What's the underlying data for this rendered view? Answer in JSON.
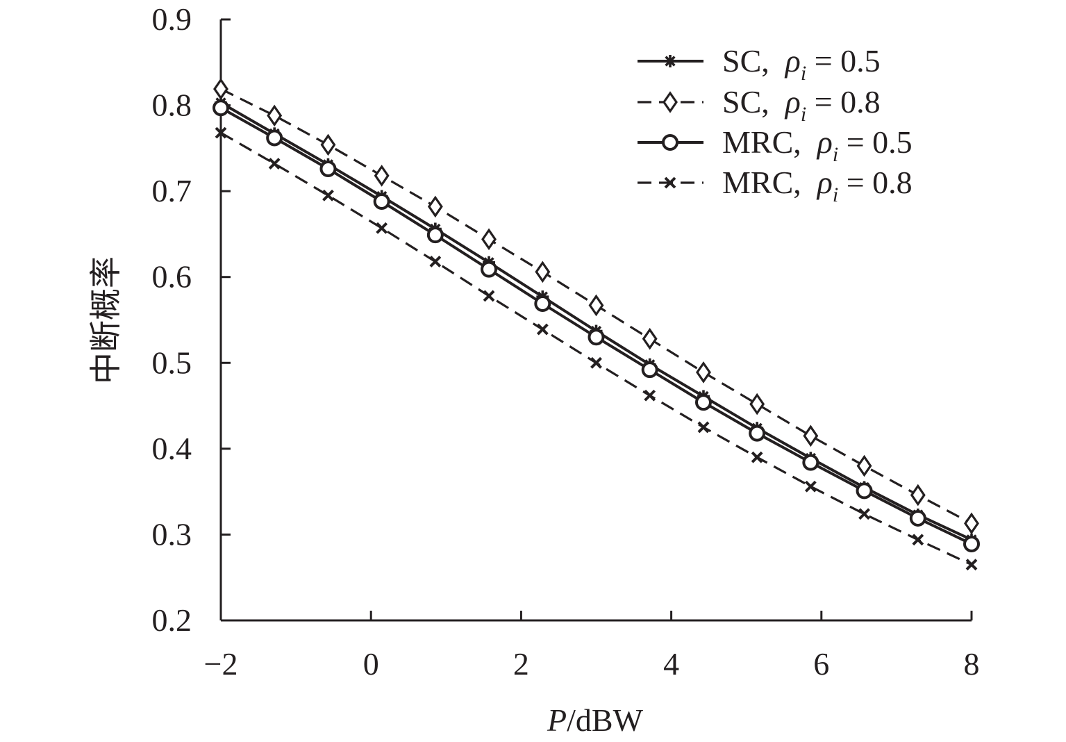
{
  "chart_data": {
    "type": "line",
    "title": "",
    "xlabel_italic": "P",
    "xlabel_rest": "/dBW",
    "ylabel": "中断概率",
    "xlim": [
      -2,
      8
    ],
    "ylim": [
      0.2,
      0.9
    ],
    "xticks": [
      -2,
      0,
      2,
      4,
      6,
      8
    ],
    "xtick_labels": [
      "−2",
      "0",
      "2",
      "4",
      "6",
      "8"
    ],
    "yticks": [
      0.2,
      0.3,
      0.4,
      0.5,
      0.6,
      0.7,
      0.8,
      0.9
    ],
    "ytick_labels": [
      "0.2",
      "0.3",
      "0.4",
      "0.5",
      "0.6",
      "0.7",
      "0.8",
      "0.9"
    ],
    "grid": false,
    "legend_position": "top-right",
    "x": [
      -2,
      -1.286,
      -0.571,
      0.143,
      0.857,
      1.571,
      2.286,
      3.0,
      3.714,
      4.429,
      5.143,
      5.857,
      6.571,
      7.286,
      8.0
    ],
    "series": [
      {
        "name": "SC,",
        "param": "ρ",
        "sub": "i",
        "rest": " = 0.5",
        "marker": "asterisk",
        "dash": "solid",
        "color": "#231f20",
        "values": [
          0.803,
          0.767,
          0.731,
          0.694,
          0.656,
          0.617,
          0.577,
          0.537,
          0.498,
          0.461,
          0.424,
          0.389,
          0.355,
          0.323,
          0.294
        ]
      },
      {
        "name": "SC,",
        "param": "ρ",
        "sub": "i",
        "rest": " = 0.8",
        "marker": "diamond",
        "dash": "dashed",
        "color": "#231f20",
        "values": [
          0.819,
          0.788,
          0.754,
          0.718,
          0.682,
          0.644,
          0.606,
          0.567,
          0.528,
          0.489,
          0.452,
          0.415,
          0.38,
          0.346,
          0.313
        ]
      },
      {
        "name": "MRC,",
        "param": "ρ",
        "sub": "i",
        "rest": " = 0.5",
        "marker": "circle",
        "dash": "solid",
        "color": "#231f20",
        "values": [
          0.797,
          0.762,
          0.726,
          0.688,
          0.649,
          0.609,
          0.569,
          0.53,
          0.492,
          0.454,
          0.418,
          0.384,
          0.351,
          0.319,
          0.289
        ]
      },
      {
        "name": "MRC,",
        "param": "ρ",
        "sub": "i",
        "rest": " = 0.8",
        "marker": "x",
        "dash": "dashed",
        "color": "#231f20",
        "values": [
          0.768,
          0.732,
          0.695,
          0.657,
          0.618,
          0.578,
          0.539,
          0.5,
          0.462,
          0.425,
          0.39,
          0.356,
          0.324,
          0.294,
          0.265
        ]
      }
    ]
  }
}
